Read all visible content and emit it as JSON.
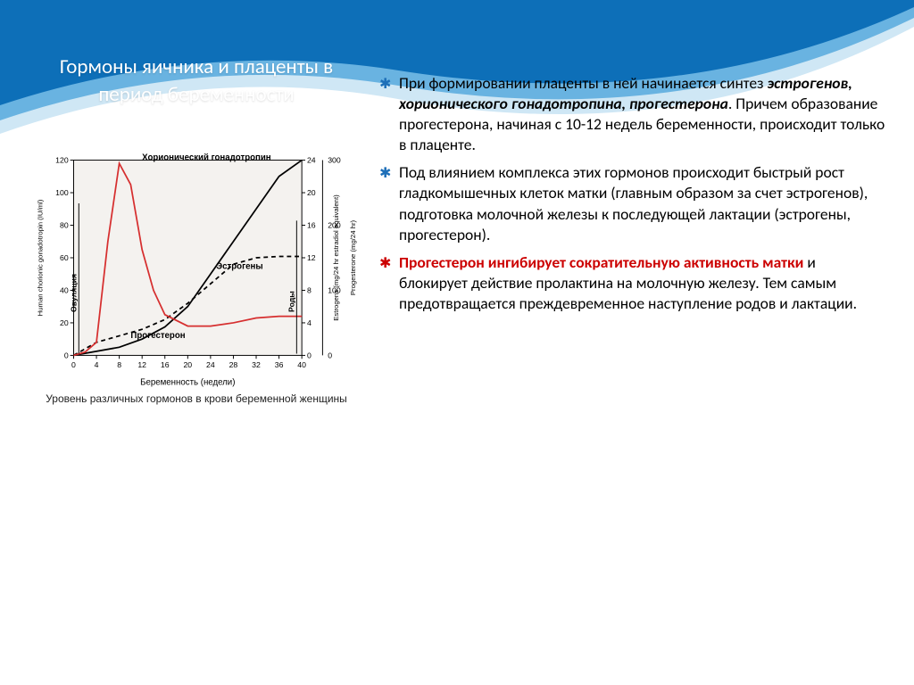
{
  "title": "Гормоны яичника и плаценты в период беременности",
  "bullets": {
    "b1_pre": "При формировании плаценты в ней начинается синтез ",
    "b1_em": "эстрогенов, хорионического гонадотропина, прогестерона",
    "b1_post": ". Причем образование прогестерона, начиная с 10-12 недель беременности, происходит только в плаценте.",
    "b2": "Под влиянием комплекса этих гормонов происходит быстрый рост гладкомышечных клеток матки (главным образом за счет эстрогенов), подготовка молочной железы к последующей лактации (эстрогены, прогестерон).",
    "b3_red": "Прогестерон ингибирует сократительную активность матки",
    "b3_rest": " и блокирует действие пролактина на молочную железу. Тем самым предотвращается преждевременное наступление родов и лактации."
  },
  "chart": {
    "caption": "Уровень различных гормонов в крови беременной женщины",
    "x_label": "Беременность (недели)",
    "y1_label": "Human chorionic gonadotropin (IU/ml)",
    "y2_label": "Estrogens (mg/24 hr estradiol equivalent)",
    "y3_label": "Progesterone (mg/24 hr)",
    "series_labels": {
      "hcg": "Хорионический гонадотропин",
      "estrogen": "Эстрогены",
      "progesterone": "Прогестерон",
      "ovulation": "Овуляция",
      "birth": "Роды"
    },
    "x_ticks": [
      0,
      4,
      8,
      12,
      16,
      20,
      24,
      28,
      32,
      36,
      40
    ],
    "y1_ticks": [
      0,
      20,
      40,
      60,
      80,
      100,
      120
    ],
    "y2_ticks": [
      0,
      4,
      8,
      12,
      16,
      20,
      24
    ],
    "y3_ticks": [
      0,
      100,
      200,
      300
    ],
    "colors": {
      "hcg": "#d62f2f",
      "estrogen": "#000000",
      "progesterone": "#000000",
      "axes": "#000000",
      "grid": "#c8c8c8",
      "bg": "#f4f2ef"
    },
    "hcg_points": [
      [
        0,
        0
      ],
      [
        2,
        2
      ],
      [
        4,
        8
      ],
      [
        6,
        70
      ],
      [
        8,
        118
      ],
      [
        10,
        105
      ],
      [
        12,
        65
      ],
      [
        14,
        40
      ],
      [
        16,
        25
      ],
      [
        20,
        18
      ],
      [
        24,
        18
      ],
      [
        28,
        20
      ],
      [
        32,
        23
      ],
      [
        36,
        24
      ],
      [
        40,
        24
      ]
    ],
    "estrogen_points": [
      [
        0,
        0
      ],
      [
        4,
        0.5
      ],
      [
        8,
        1
      ],
      [
        12,
        2
      ],
      [
        16,
        3.5
      ],
      [
        20,
        6
      ],
      [
        24,
        10
      ],
      [
        28,
        14
      ],
      [
        32,
        18
      ],
      [
        36,
        22
      ],
      [
        40,
        24
      ]
    ],
    "progesterone_points": [
      [
        0,
        0
      ],
      [
        4,
        20
      ],
      [
        8,
        30
      ],
      [
        12,
        40
      ],
      [
        16,
        55
      ],
      [
        20,
        80
      ],
      [
        24,
        110
      ],
      [
        28,
        140
      ],
      [
        32,
        150
      ],
      [
        36,
        152
      ],
      [
        40,
        152
      ]
    ],
    "ovulation_x": 0,
    "birth_x": 40,
    "line_width": 1.8,
    "dash_pattern": "5,4"
  },
  "wave": {
    "dark": "#0d6fb8",
    "light": "#69b3e1",
    "under": "#cfe7f5"
  }
}
